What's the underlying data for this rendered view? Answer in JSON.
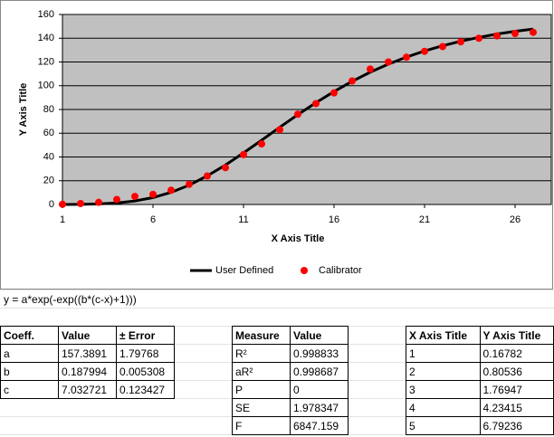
{
  "chart_data": {
    "type": "line",
    "x_label": "X Axis Title",
    "y_label": "Y Axis Title",
    "x": [
      1,
      2,
      3,
      4,
      5,
      6,
      7,
      8,
      9,
      10,
      11,
      12,
      13,
      14,
      15,
      16,
      17,
      18,
      19,
      20,
      21,
      22,
      23,
      24,
      25,
      26,
      27
    ],
    "series": [
      {
        "name": "User Defined",
        "color": "#000000",
        "style": "line",
        "values": [
          0.03,
          0.14,
          0.48,
          1.28,
          2.94,
          5.8,
          10.2,
          16.3,
          24.1,
          33.2,
          43.4,
          54.1,
          65.0,
          75.6,
          85.7,
          95.1,
          103.7,
          111.4,
          118.2,
          124.1,
          129.3,
          133.7,
          137.5,
          140.7,
          143.5,
          145.8,
          147.7
        ]
      },
      {
        "name": "Calibrator",
        "color": "#ff0000",
        "style": "scatter",
        "values": [
          0.16782,
          0.80536,
          1.76947,
          4.23415,
          6.79236,
          8.5,
          12,
          17,
          24,
          31,
          42,
          51,
          63,
          76,
          85,
          94,
          104,
          114,
          120,
          124,
          129,
          133,
          137,
          140,
          142,
          144,
          145
        ]
      }
    ],
    "xlim": [
      1,
      28
    ],
    "xticks": [
      1,
      6,
      11,
      16,
      21,
      26
    ],
    "ylim": [
      0,
      160
    ],
    "yticks": [
      0,
      20,
      40,
      60,
      80,
      100,
      120,
      140,
      160
    ],
    "grid": true,
    "legend": "bottom",
    "plot_background": "#c0c0c0"
  },
  "formula": "y = a*exp(-exp((b*(c-x)+1)))",
  "tables": [
    {
      "rows": [
        [
          "Coeff.",
          "Value",
          "± Error"
        ],
        [
          "a",
          "157.3891",
          "1.79768"
        ],
        [
          "b",
          "0.187994",
          "0.005308"
        ],
        [
          "c",
          "7.032721",
          "0.123427"
        ]
      ]
    },
    {
      "rows": [
        [
          "Measure",
          "Value"
        ],
        [
          "R²",
          "0.998833"
        ],
        [
          "aR²",
          "0.998687"
        ],
        [
          "P",
          "0"
        ],
        [
          "SE",
          "1.978347"
        ],
        [
          "F",
          "6847.159"
        ]
      ]
    },
    {
      "rows": [
        [
          "X Axis Title",
          "Y Axis Title"
        ],
        [
          "1",
          "0.16782"
        ],
        [
          "2",
          "0.80536"
        ],
        [
          "3",
          "1.76947"
        ],
        [
          "4",
          "4.23415"
        ],
        [
          "5",
          "6.79236"
        ]
      ]
    }
  ]
}
